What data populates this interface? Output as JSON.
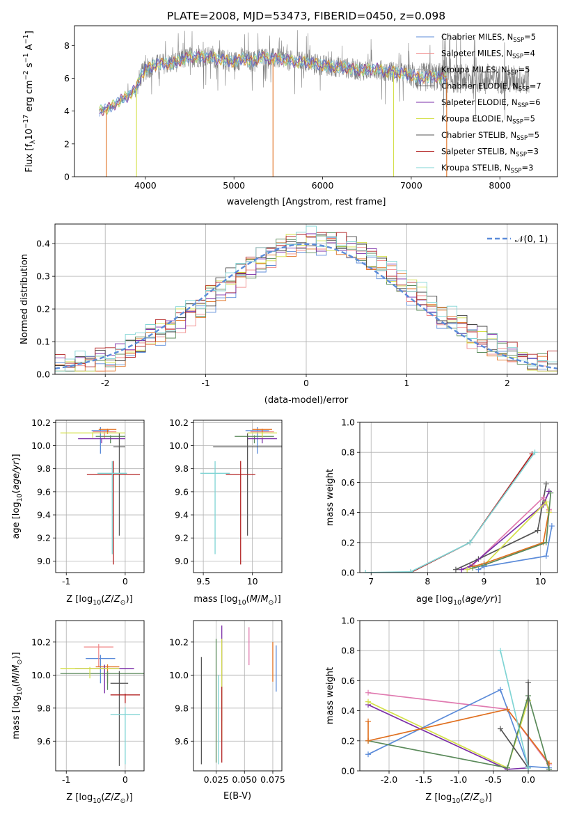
{
  "title": "PLATE=2008, MJD=53473, FIBERID=0450, z=0.098",
  "colors": {
    "chabrier_miles": "#5b8bd9",
    "salpeter_miles": "#f08a8a",
    "kroupa_miles": "#a0a0a0",
    "chabrier_elodie": "#555555",
    "salpeter_elodie": "#7b2ea8",
    "kroupa_elodie": "#d4e04a",
    "chabrier_stelib": "#6a6a6a",
    "salpeter_stelib": "#b22222",
    "kroupa_stelib": "#7fd4d4",
    "orange": "#e07020",
    "green": "#5a8a5a",
    "pink": "#e07ab0",
    "dark": "#444444",
    "gauss": "#5b8bd9",
    "grid": "#b0b0b0"
  },
  "chart_data": [
    {
      "type": "line",
      "name": "spectrum",
      "xlabel": "wavelength [Angstrom, rest frame]",
      "ylabel_main": "Flux [f",
      "ylabel_sub": "λ",
      "ylabel_rest": "10",
      "ylabel_exp": "−17",
      "ylabel_tail": " erg cm",
      "ylabel_units": [
        "erg cm",
        "−2",
        "s",
        "−1",
        "A",
        "−1"
      ],
      "xlim": [
        3200,
        8650
      ],
      "ylim": [
        0,
        9.2
      ],
      "xticks": [
        4000,
        5000,
        6000,
        7000,
        8000
      ],
      "yticks": [
        0,
        2,
        4,
        6,
        8
      ],
      "legend": [
        {
          "label": "Chabrier MILES, N",
          "sub": "SSP",
          "tail": "=5",
          "color": "#5b8bd9"
        },
        {
          "label": "Salpeter MILES, N",
          "sub": "SSP",
          "tail": "=4",
          "color": "#f08a8a"
        },
        {
          "label": "Kroupa MILES, N",
          "sub": "SSP",
          "tail": "=5",
          "color": "#a0a0a0"
        },
        {
          "label": "Chabrier ELODIE, N",
          "sub": "SSP",
          "tail": "=7",
          "color": "#555555"
        },
        {
          "label": "Salpeter ELODIE, N",
          "sub": "SSP",
          "tail": "=6",
          "color": "#7b2ea8"
        },
        {
          "label": "Kroupa ELODIE, N",
          "sub": "SSP",
          "tail": "=5",
          "color": "#d4e04a"
        },
        {
          "label": "Chabrier STELIB, N",
          "sub": "SSP",
          "tail": "=5",
          "color": "#555555"
        },
        {
          "label": "Salpeter STELIB, N",
          "sub": "SSP",
          "tail": "=3",
          "color": "#b22222"
        },
        {
          "label": "Kroupa STELIB, N",
          "sub": "SSP",
          "tail": "=3",
          "color": "#7fd4d4"
        }
      ],
      "continuum": [
        [
          3480,
          4.0
        ],
        [
          3600,
          4.2
        ],
        [
          3700,
          4.6
        ],
        [
          3800,
          4.9
        ],
        [
          3900,
          5.4
        ],
        [
          3950,
          6.2
        ],
        [
          4000,
          6.5
        ],
        [
          4100,
          6.8
        ],
        [
          4200,
          6.9
        ],
        [
          4300,
          6.9
        ],
        [
          4400,
          7.1
        ],
        [
          4500,
          7.3
        ],
        [
          4600,
          7.3
        ],
        [
          4700,
          7.3
        ],
        [
          4800,
          7.2
        ],
        [
          4900,
          7.1
        ],
        [
          5000,
          7.0
        ],
        [
          5100,
          7.2
        ],
        [
          5200,
          7.0
        ],
        [
          5300,
          7.3
        ],
        [
          5400,
          7.2
        ],
        [
          5500,
          7.2
        ],
        [
          5600,
          7.1
        ],
        [
          5700,
          7.0
        ],
        [
          5800,
          7.0
        ],
        [
          5900,
          6.9
        ],
        [
          6000,
          6.8
        ],
        [
          6100,
          6.7
        ],
        [
          6200,
          6.7
        ],
        [
          6300,
          6.6
        ],
        [
          6400,
          6.5
        ],
        [
          6500,
          6.5
        ],
        [
          6600,
          6.6
        ],
        [
          6700,
          6.4
        ],
        [
          6800,
          6.4
        ],
        [
          6900,
          6.3
        ],
        [
          7000,
          6.2
        ],
        [
          7100,
          6.0
        ],
        [
          7200,
          6.1
        ],
        [
          7300,
          6.1
        ],
        [
          7350,
          6.0
        ]
      ],
      "data_range": [
        3480,
        8330
      ]
    },
    {
      "type": "bar",
      "name": "residual-histogram",
      "xlabel": "(data-model)/error",
      "ylabel": "Normed distribution",
      "legend": "𝒩(0, 1)",
      "xlim": [
        -2.5,
        2.5
      ],
      "ylim": [
        0,
        0.46
      ],
      "xticks": [
        -2,
        -1,
        0,
        1,
        2
      ],
      "yticks": [
        0.0,
        0.1,
        0.2,
        0.3,
        0.4
      ],
      "bin_width": 0.1
    },
    {
      "type": "scatter",
      "name": "age-vs-Z",
      "xlabel": "Z [log",
      "xlabel_sub": "10",
      "xlabel_tail": "(Z/Z",
      "ylabel": "age  [log",
      "xlim": [
        -1.18,
        0.32
      ],
      "ylim": [
        8.9,
        10.22
      ],
      "xticks": [
        -1,
        0
      ],
      "yticks": [
        9.0,
        9.2,
        9.4,
        9.6,
        9.8,
        10.0,
        10.2
      ],
      "points": [
        {
          "x": -0.42,
          "y": 10.13,
          "xe": 0.15,
          "ye": 0.2,
          "c": "#5b8bd9"
        },
        {
          "x": -0.35,
          "y": 10.12,
          "xe": 0.2,
          "ye": 0.06,
          "c": "#f08a8a"
        },
        {
          "x": -0.3,
          "y": 10.14,
          "xe": 0.15,
          "ye": 0.04,
          "c": "#e07020"
        },
        {
          "x": -0.25,
          "y": 10.08,
          "xe": 0.25,
          "ye": 0.06,
          "c": "#5a8a5a"
        },
        {
          "x": -0.4,
          "y": 10.06,
          "xe": 0.4,
          "ye": 0.04,
          "c": "#7b2ea8"
        },
        {
          "x": -0.55,
          "y": 10.11,
          "xe": 0.55,
          "ye": 0.04,
          "c": "#d4e04a"
        },
        {
          "x": -0.1,
          "y": 9.99,
          "xe": 0.1,
          "ye": 0.77,
          "c": "#555555"
        },
        {
          "x": -0.2,
          "y": 9.75,
          "xe": 0.45,
          "ye": 0.78,
          "c": "#b22222"
        },
        {
          "x": -0.22,
          "y": 9.76,
          "xe": 0.25,
          "ye": 0.7,
          "c": "#7fd4d4"
        }
      ]
    },
    {
      "type": "scatter",
      "name": "age-vs-mass",
      "xlabel": "mass [log",
      "xlim": [
        9.4,
        10.3
      ],
      "ylim": [
        8.9,
        10.22
      ],
      "xticks": [
        9.5,
        10.0
      ],
      "yticks": [
        9.0,
        9.2,
        9.4,
        9.6,
        9.8,
        10.0,
        10.2
      ],
      "points": [
        {
          "x": 10.05,
          "y": 10.13,
          "xe": 0.12,
          "ye": 0.2,
          "c": "#5b8bd9"
        },
        {
          "x": 10.1,
          "y": 10.12,
          "xe": 0.12,
          "ye": 0.06,
          "c": "#f08a8a"
        },
        {
          "x": 10.1,
          "y": 10.14,
          "xe": 0.1,
          "ye": 0.04,
          "c": "#e07020"
        },
        {
          "x": 10.02,
          "y": 10.08,
          "xe": 0.2,
          "ye": 0.06,
          "c": "#5a8a5a"
        },
        {
          "x": 10.1,
          "y": 10.06,
          "xe": 0.15,
          "ye": 0.04,
          "c": "#7b2ea8"
        },
        {
          "x": 10.1,
          "y": 10.11,
          "xe": 0.15,
          "ye": 0.04,
          "c": "#d4e04a"
        },
        {
          "x": 9.95,
          "y": 9.99,
          "xe": 0.35,
          "ye": 0.77,
          "c": "#555555"
        },
        {
          "x": 9.88,
          "y": 9.75,
          "xe": 0.15,
          "ye": 0.78,
          "c": "#b22222"
        },
        {
          "x": 9.62,
          "y": 9.76,
          "xe": 0.15,
          "ye": 0.7,
          "c": "#7fd4d4"
        }
      ]
    },
    {
      "type": "line",
      "name": "mass-weight-vs-age",
      "xlabel": "age  [log",
      "ylabel": "mass weight",
      "xlim": [
        6.8,
        10.3
      ],
      "ylim": [
        0,
        1.0
      ],
      "xticks": [
        7,
        8,
        9,
        10
      ],
      "yticks": [
        0.0,
        0.2,
        0.4,
        0.6,
        0.8,
        1.0
      ],
      "series": [
        {
          "c": "#b22222",
          "pts": [
            [
              7.7,
              0.0
            ],
            [
              8.75,
              0.2
            ],
            [
              9.85,
              0.79
            ]
          ]
        },
        {
          "c": "#7fd4d4",
          "pts": [
            [
              6.9,
              0.0
            ],
            [
              7.7,
              0.005
            ],
            [
              8.75,
              0.2
            ],
            [
              9.9,
              0.8
            ]
          ]
        },
        {
          "c": "#555555",
          "pts": [
            [
              8.5,
              0.02
            ],
            [
              8.9,
              0.09
            ],
            [
              9.95,
              0.28
            ],
            [
              10.1,
              0.59
            ]
          ]
        },
        {
          "c": "#e07ab0",
          "pts": [
            [
              8.6,
              0.02
            ],
            [
              8.8,
              0.05
            ],
            [
              10.05,
              0.5
            ],
            [
              10.15,
              0.42
            ]
          ]
        },
        {
          "c": "#7b2ea8",
          "pts": [
            [
              8.6,
              0.02
            ],
            [
              8.75,
              0.04
            ],
            [
              10.05,
              0.45
            ],
            [
              10.15,
              0.54
            ]
          ]
        },
        {
          "c": "#d4e04a",
          "pts": [
            [
              8.7,
              0.02
            ],
            [
              9.0,
              0.05
            ],
            [
              10.1,
              0.47
            ],
            [
              10.15,
              0.4
            ]
          ]
        },
        {
          "c": "#e07020",
          "pts": [
            [
              8.8,
              0.04
            ],
            [
              9.0,
              0.06
            ],
            [
              10.05,
              0.2
            ],
            [
              10.15,
              0.41
            ]
          ]
        },
        {
          "c": "#5a8a5a",
          "pts": [
            [
              8.8,
              0.03
            ],
            [
              9.0,
              0.05
            ],
            [
              10.1,
              0.2
            ],
            [
              10.18,
              0.53
            ]
          ]
        },
        {
          "c": "#5b8bd9",
          "pts": [
            [
              8.9,
              0.02
            ],
            [
              9.0,
              0.04
            ],
            [
              10.1,
              0.11
            ],
            [
              10.2,
              0.31
            ]
          ]
        }
      ]
    },
    {
      "type": "scatter",
      "name": "mass-vs-Z",
      "xlabel": "Z [log",
      "ylabel": "mass [log",
      "xlim": [
        -1.18,
        0.32
      ],
      "ylim": [
        9.42,
        10.33
      ],
      "xticks": [
        -1,
        0
      ],
      "yticks": [
        9.6,
        9.8,
        10.0,
        10.2
      ],
      "points": [
        {
          "x": -0.42,
          "y": 10.1,
          "xe": 0.25,
          "ye": 0.15,
          "c": "#5b8bd9"
        },
        {
          "x": -0.45,
          "y": 10.17,
          "xe": 0.25,
          "ye": 0.12,
          "c": "#f08a8a"
        },
        {
          "x": -0.3,
          "y": 10.05,
          "xe": 0.2,
          "ye": 0.1,
          "c": "#e07020"
        },
        {
          "x": -0.3,
          "y": 10.01,
          "xe": 0.8,
          "ye": 0.1,
          "c": "#5a8a5a"
        },
        {
          "x": -0.35,
          "y": 10.04,
          "xe": 0.5,
          "ye": 0.15,
          "c": "#7b2ea8"
        },
        {
          "x": -0.6,
          "y": 10.04,
          "xe": 0.5,
          "ye": 0.06,
          "c": "#d4e04a"
        },
        {
          "x": -0.1,
          "y": 9.95,
          "xe": 0.15,
          "ye": 0.5,
          "c": "#555555"
        },
        {
          "x": 0.0,
          "y": 9.88,
          "xe": 0.25,
          "ye": 0.05,
          "c": "#b22222"
        },
        {
          "x": 0.0,
          "y": 9.76,
          "xe": 0.25,
          "ye": 0.3,
          "c": "#7fd4d4"
        }
      ]
    },
    {
      "type": "scatter",
      "name": "mass-vs-ebv",
      "xlabel": "E(B-V)",
      "xlim": [
        0.005,
        0.083
      ],
      "ylim": [
        9.42,
        10.33
      ],
      "xticks": [
        0.025,
        0.05,
        0.075
      ],
      "xticklabels": [
        "0.025",
        "0.050",
        "0.075"
      ],
      "yticks": [
        9.6,
        9.8,
        10.0,
        10.2
      ],
      "segments": [
        {
          "x": 0.012,
          "y0": 9.46,
          "y1": 10.11,
          "c": "#555555"
        },
        {
          "x": 0.025,
          "y0": 9.47,
          "y1": 10.22,
          "c": "#5a8a5a"
        },
        {
          "x": 0.027,
          "y0": 9.46,
          "y1": 10.0,
          "c": "#7fd4d4"
        },
        {
          "x": 0.03,
          "y0": 9.72,
          "y1": 10.3,
          "c": "#7b2ea8"
        },
        {
          "x": 0.03,
          "y0": 9.6,
          "y1": 10.22,
          "c": "#d4e04a"
        },
        {
          "x": 0.03,
          "y0": 9.47,
          "y1": 9.93,
          "c": "#b22222"
        },
        {
          "x": 0.054,
          "y0": 10.06,
          "y1": 10.29,
          "c": "#e07ab0"
        },
        {
          "x": 0.075,
          "y0": 9.96,
          "y1": 10.2,
          "c": "#e07020"
        },
        {
          "x": 0.078,
          "y0": 9.9,
          "y1": 10.18,
          "c": "#5b8bd9"
        }
      ]
    },
    {
      "type": "line",
      "name": "mass-weight-vs-Z",
      "xlabel": "Z [log",
      "ylabel": "mass weight",
      "xlim": [
        -2.42,
        0.42
      ],
      "ylim": [
        0,
        1.0
      ],
      "xticks": [
        -2.0,
        -1.5,
        -1.0,
        -0.5,
        0.0
      ],
      "yticks": [
        0.0,
        0.2,
        0.4,
        0.6,
        0.8,
        1.0
      ],
      "series": [
        {
          "c": "#e07ab0",
          "pts": [
            [
              -2.3,
              0.52
            ],
            [
              -0.3,
              0.41
            ],
            [
              0.3,
              0.04
            ]
          ]
        },
        {
          "c": "#7b2ea8",
          "pts": [
            [
              -2.3,
              0.44
            ],
            [
              -0.3,
              0.01
            ],
            [
              0.0,
              0.02
            ]
          ]
        },
        {
          "c": "#d4e04a",
          "pts": [
            [
              -2.3,
              0.46
            ],
            [
              -0.3,
              0.02
            ],
            [
              0.0,
              0.47
            ]
          ]
        },
        {
          "c": "#5b8bd9",
          "pts": [
            [
              -2.3,
              0.11
            ],
            [
              -0.4,
              0.54
            ],
            [
              0.0,
              0.03
            ],
            [
              0.3,
              0.02
            ]
          ]
        },
        {
          "c": "#e07020",
          "pts": [
            [
              -2.3,
              0.2
            ],
            [
              -0.3,
              0.41
            ],
            [
              0.3,
              0.05
            ]
          ]
        },
        {
          "c": "#5a8a5a",
          "pts": [
            [
              -2.3,
              0.2
            ],
            [
              -0.3,
              0.02
            ],
            [
              0.0,
              0.5
            ],
            [
              0.3,
              0.01
            ]
          ]
        },
        {
          "c": "#555555",
          "pts": [
            [
              -0.4,
              0.28
            ],
            [
              0.0,
              0.02
            ]
          ]
        },
        {
          "c": "#555555",
          "pts": [
            [
              0.0,
              0.59
            ],
            [
              0.0,
              0.02
            ]
          ]
        },
        {
          "c": "#7fd4d4",
          "pts": [
            [
              -0.4,
              0.8
            ],
            [
              0.0,
              0.02
            ]
          ]
        },
        {
          "c": "#e07020",
          "pts": [
            [
              -2.3,
              0.33
            ],
            [
              -2.3,
              0.2
            ]
          ]
        }
      ]
    }
  ]
}
